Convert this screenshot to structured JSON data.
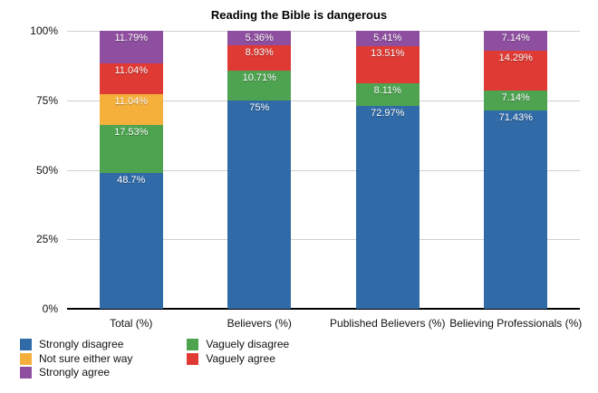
{
  "chart_data": {
    "type": "bar",
    "stacked": true,
    "title": "Reading the Bible is dangerous",
    "xlabel": "",
    "ylabel": "",
    "ylim": [
      0,
      100
    ],
    "grid": true,
    "categories": [
      "Total (%)",
      "Believers (%)",
      "Published Believers (%)",
      "Believing Professionals (%)"
    ],
    "series": [
      {
        "name": "Strongly disagree",
        "color": "#306AA7",
        "values": [
          48.7,
          75,
          72.97,
          71.43
        ],
        "labels": [
          "48.7%",
          "75%",
          "72.97%",
          "71.43%"
        ]
      },
      {
        "name": "Vaguely disagree",
        "color": "#4EA351",
        "values": [
          17.53,
          10.71,
          8.11,
          7.14
        ],
        "labels": [
          "17.53%",
          "10.71%",
          "8.11%",
          "7.14%"
        ]
      },
      {
        "name": "Not sure either way",
        "color": "#F5B03C",
        "values": [
          11.04,
          0,
          0,
          0
        ],
        "labels": [
          "11.04%",
          "",
          "",
          ""
        ]
      },
      {
        "name": "Vaguely agree",
        "color": "#DF3A34",
        "values": [
          11.04,
          8.93,
          13.51,
          14.29
        ],
        "labels": [
          "11.04%",
          "8.93%",
          "13.51%",
          "14.29%"
        ]
      },
      {
        "name": "Strongly agree",
        "color": "#8F4FA0",
        "values": [
          11.79,
          5.36,
          5.41,
          7.14
        ],
        "labels": [
          "11.79%",
          "5.36%",
          "5.41%",
          "7.14%"
        ]
      }
    ],
    "y_ticks": [
      {
        "value": 0,
        "label": "0%"
      },
      {
        "value": 25,
        "label": "25%"
      },
      {
        "value": 50,
        "label": "50%"
      },
      {
        "value": 75,
        "label": "75%"
      },
      {
        "value": 100,
        "label": "100%"
      }
    ],
    "legend": {
      "position": "bottom-left",
      "columns": [
        [
          "Strongly disagree",
          "Not sure either way",
          "Strongly agree"
        ],
        [
          "Vaguely disagree",
          "Vaguely agree"
        ]
      ]
    },
    "colors": {
      "gridline": "#cfcfcf",
      "axis": "#000000",
      "background": "#ffffff"
    }
  }
}
